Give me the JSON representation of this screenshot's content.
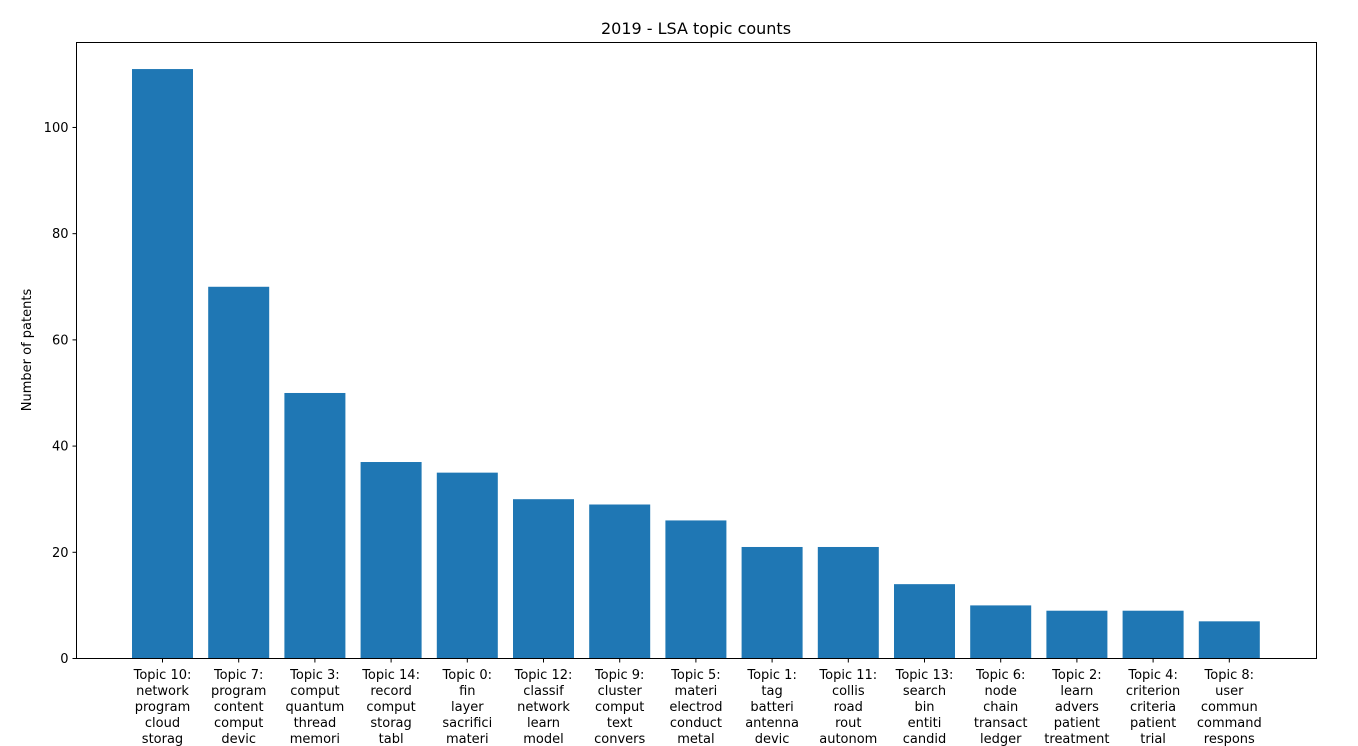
{
  "chart_data": {
    "type": "bar",
    "title": "2019 - LSA topic counts",
    "xlabel": "",
    "ylabel": "Number of patents",
    "ylim": [
      0,
      116
    ],
    "yticks": [
      0,
      20,
      40,
      60,
      80,
      100
    ],
    "grid": false,
    "color": "#1f77b4",
    "categories": [
      [
        "Topic 10:",
        "network",
        "program",
        "cloud",
        "storag"
      ],
      [
        "Topic 7:",
        "program",
        "content",
        "comput",
        "devic"
      ],
      [
        "Topic 3:",
        "comput",
        "quantum",
        "thread",
        "memori"
      ],
      [
        "Topic 14:",
        "record",
        "comput",
        "storag",
        "tabl"
      ],
      [
        "Topic 0:",
        "fin",
        "layer",
        "sacrifici",
        "materi"
      ],
      [
        "Topic 12:",
        "classif",
        "network",
        "learn",
        "model"
      ],
      [
        "Topic 9:",
        "cluster",
        "comput",
        "text",
        "convers"
      ],
      [
        "Topic 5:",
        "materi",
        "electrod",
        "conduct",
        "metal"
      ],
      [
        "Topic 1:",
        "tag",
        "batteri",
        "antenna",
        "devic"
      ],
      [
        "Topic 11:",
        "collis",
        "road",
        "rout",
        "autonom"
      ],
      [
        "Topic 13:",
        "search",
        "bin",
        "entiti",
        "candid"
      ],
      [
        "Topic 6:",
        "node",
        "chain",
        "transact",
        "ledger"
      ],
      [
        "Topic 2:",
        "learn",
        "advers",
        "patient",
        "treatment"
      ],
      [
        "Topic 4:",
        "criterion",
        "criteria",
        "patient",
        "trial"
      ],
      [
        "Topic 8:",
        "user",
        "commun",
        "command",
        "respons"
      ]
    ],
    "values": [
      111,
      70,
      50,
      37,
      35,
      30,
      29,
      26,
      21,
      21,
      14,
      10,
      9,
      9,
      7
    ]
  }
}
